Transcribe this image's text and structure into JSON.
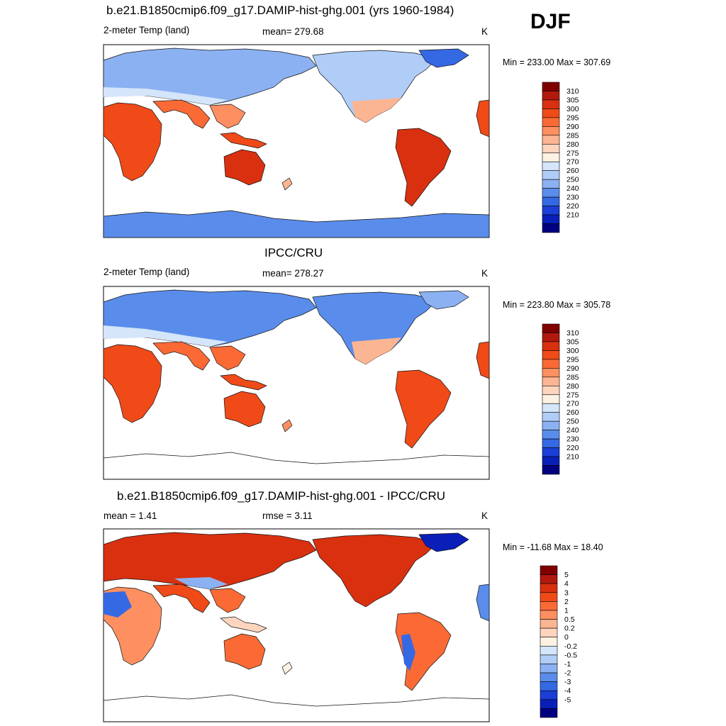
{
  "season": "DJF",
  "panels": [
    {
      "title": "b.e21.B1850cmip6.f09_g17.DAMIP-hist-ghg.001 (yrs 1960-1984)",
      "left_label": "2-meter Temp (land)",
      "center_label": "mean= 279.68",
      "units": "K",
      "minmax": "Min = 233.00 Max = 307.69",
      "colorbar_labels": [
        "310",
        "305",
        "300",
        "295",
        "290",
        "285",
        "280",
        "275",
        "270",
        "260",
        "250",
        "240",
        "230",
        "220",
        "210"
      ],
      "colorbar_colors": [
        "#800000",
        "#b2190d",
        "#d93010",
        "#f04a18",
        "#fb6a35",
        "#fd8f60",
        "#fcb592",
        "#fdd5bf",
        "#fdf1e3",
        "#d5e5fa",
        "#b0cdf7",
        "#8bb1f2",
        "#5a8deb",
        "#3568e3",
        "#1a3ed6",
        "#0a1fb8",
        "#000080"
      ]
    },
    {
      "title": "IPCC/CRU",
      "left_label": "2-meter Temp (land)",
      "center_label": "mean= 278.27",
      "units": "K",
      "minmax": "Min = 223.80 Max = 305.78",
      "colorbar_labels": [
        "310",
        "305",
        "300",
        "295",
        "290",
        "285",
        "280",
        "275",
        "270",
        "260",
        "250",
        "240",
        "230",
        "220",
        "210"
      ],
      "colorbar_colors": [
        "#800000",
        "#b2190d",
        "#d93010",
        "#f04a18",
        "#fb6a35",
        "#fd8f60",
        "#fcb592",
        "#fdd5bf",
        "#fdf1e3",
        "#d5e5fa",
        "#b0cdf7",
        "#8bb1f2",
        "#5a8deb",
        "#3568e3",
        "#1a3ed6",
        "#0a1fb8",
        "#000080"
      ]
    },
    {
      "title": "b.e21.B1850cmip6.f09_g17.DAMIP-hist-ghg.001 - IPCC/CRU",
      "left_label": "mean =   1.41",
      "center_label": "rmse =   3.11",
      "units": "K",
      "minmax": "Min = -11.68 Max =  18.40",
      "colorbar_labels": [
        "5",
        "4",
        "3",
        "2",
        "1",
        "0.5",
        "0.2",
        "0",
        "-0.2",
        "-0.5",
        "-1",
        "-2",
        "-3",
        "-4",
        "-5"
      ],
      "colorbar_colors": [
        "#800000",
        "#b2190d",
        "#d93010",
        "#f04a18",
        "#fb6a35",
        "#fd8f60",
        "#fcb592",
        "#fdd5bf",
        "#fdf1e3",
        "#d5e5fa",
        "#b0cdf7",
        "#8bb1f2",
        "#5a8deb",
        "#3568e3",
        "#1a3ed6",
        "#0a1fb8",
        "#000080"
      ]
    }
  ]
}
